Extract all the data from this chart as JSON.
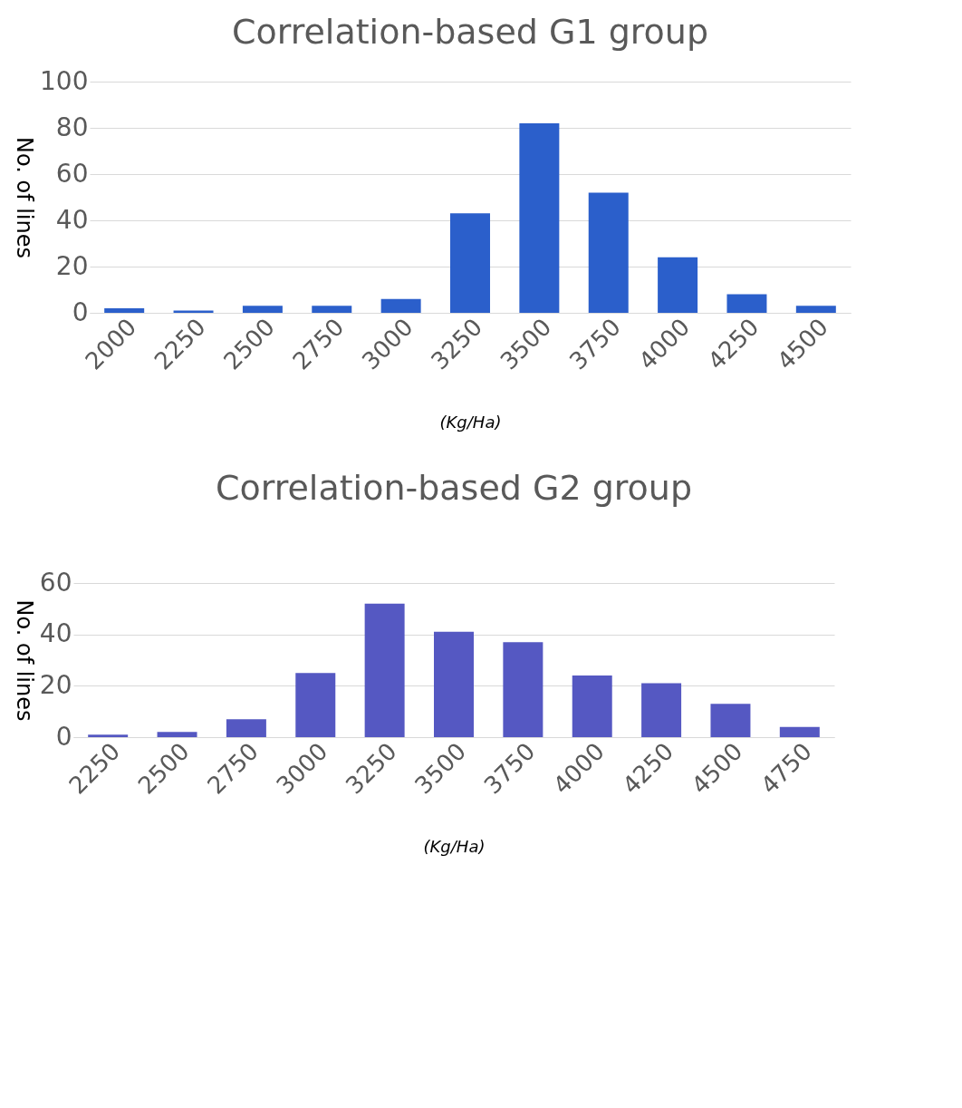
{
  "chart_data": [
    {
      "type": "bar",
      "title": "Correlation-based G1 group",
      "xlabel": "(Kg/Ha)",
      "ylabel": "No. of lines",
      "categories": [
        "2000",
        "2250",
        "2500",
        "2750",
        "3000",
        "3250",
        "3500",
        "3750",
        "4000",
        "4250",
        "4500"
      ],
      "values": [
        2,
        1,
        3,
        3,
        6,
        43,
        82,
        52,
        24,
        8,
        3
      ],
      "color": "#2b5fcb",
      "ylim": [
        0,
        100
      ],
      "yticks": [
        0,
        20,
        40,
        60,
        80,
        100
      ],
      "grid": "y"
    },
    {
      "type": "bar",
      "title": "Correlation-based G2 group",
      "xlabel": "(Kg/Ha)",
      "ylabel": "No. of lines",
      "categories": [
        "2250",
        "2500",
        "2750",
        "3000",
        "3250",
        "3500",
        "3750",
        "4000",
        "4250",
        "4500",
        "4750"
      ],
      "values": [
        1,
        2,
        7,
        25,
        52,
        41,
        37,
        24,
        21,
        13,
        4
      ],
      "color": "#5558c2",
      "ylim": [
        0,
        60
      ],
      "yticks": [
        0,
        20,
        40,
        60
      ],
      "grid": "y"
    }
  ]
}
